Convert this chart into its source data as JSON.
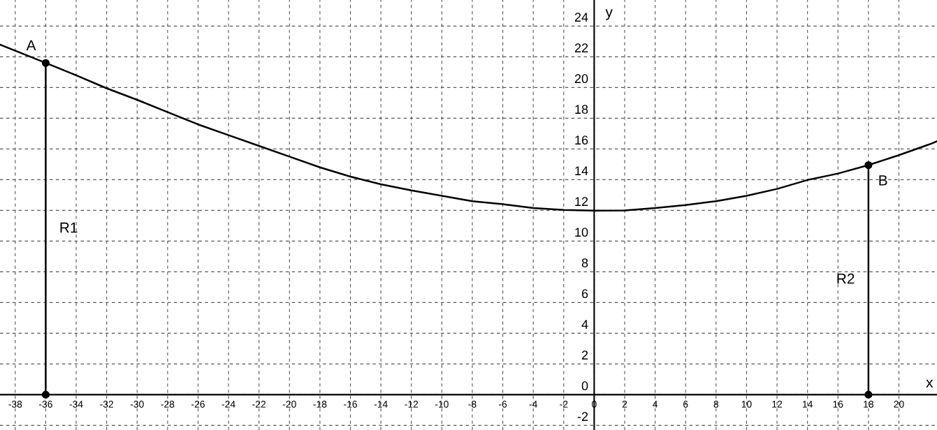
{
  "chart_data": {
    "type": "line",
    "xlabel": "x",
    "ylabel": "y",
    "xlim": [
      -39,
      22.5
    ],
    "ylim": [
      -2.3,
      25.7
    ],
    "xticks": [
      -38,
      -36,
      -34,
      -32,
      -30,
      -28,
      -26,
      -24,
      -22,
      -20,
      -18,
      -16,
      -14,
      -12,
      -10,
      -8,
      -6,
      -4,
      -2,
      0,
      2,
      4,
      6,
      8,
      10,
      12,
      14,
      16,
      18,
      20
    ],
    "yticks": [
      -2,
      0,
      2,
      4,
      6,
      8,
      10,
      12,
      14,
      16,
      18,
      20,
      22,
      24
    ],
    "grid": true,
    "marker": "none",
    "series": [
      {
        "color": "#000000",
        "x": [
          -39,
          -38,
          -36,
          -34,
          -32,
          -30,
          -28,
          -26,
          -24,
          -22,
          -20,
          -18,
          -16,
          -14,
          -12,
          -10,
          -8,
          -6,
          -4,
          -2,
          0,
          2,
          4,
          6,
          8,
          10,
          12,
          14,
          16,
          18,
          20,
          22,
          22.5
        ],
        "values": [
          22.8,
          22.4,
          21.6,
          20.8,
          19.95,
          19.2,
          18.4,
          17.6,
          16.9,
          16.2,
          15.5,
          14.8,
          14.2,
          13.7,
          13.3,
          12.95,
          12.6,
          12.4,
          12.15,
          12.03,
          11.98,
          12.0,
          12.15,
          12.35,
          12.6,
          12.95,
          13.4,
          13.98,
          14.4,
          14.95,
          15.6,
          16.3,
          16.5
        ]
      },
      {
        "name": "R1",
        "color": "#000000",
        "marker": "circle",
        "x": [
          -36,
          -36
        ],
        "values": [
          0,
          21.6
        ]
      },
      {
        "name": "R2",
        "color": "#000000",
        "marker": "circle",
        "x": [
          18,
          18
        ],
        "values": [
          0,
          14.95
        ]
      }
    ],
    "annotations": [
      {
        "text": "A",
        "x": -36,
        "y": 21.6
      },
      {
        "text": "B",
        "x": 18,
        "y": 14.95
      }
    ]
  }
}
